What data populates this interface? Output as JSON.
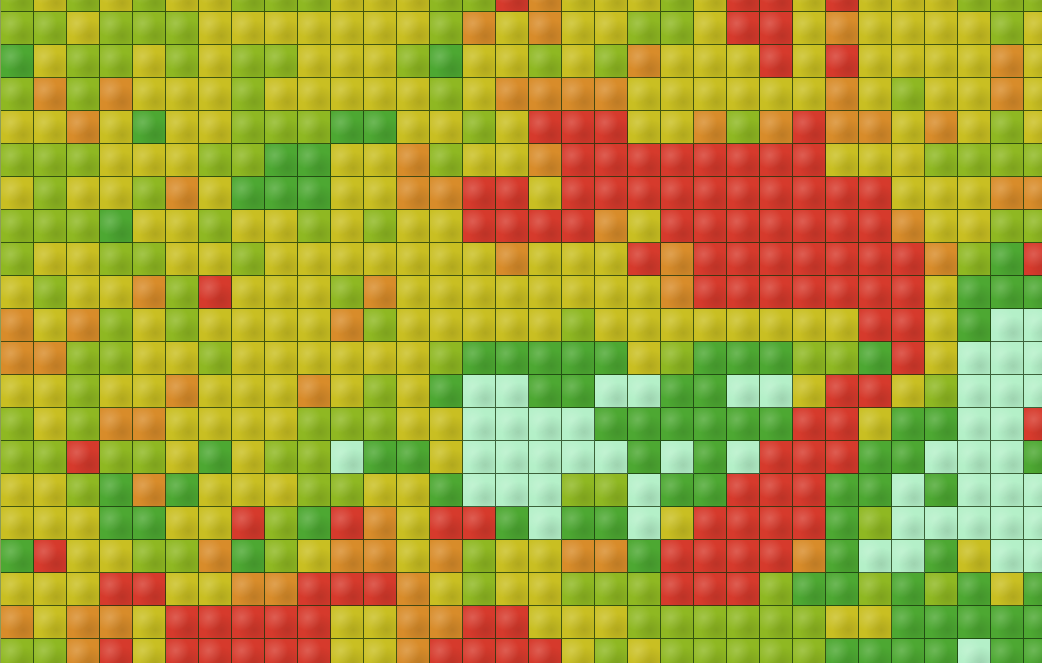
{
  "map": {
    "overlay": "heatmap-grid",
    "legend_colors": {
      "0": "#b4f0c8",
      "1": "#4da832",
      "2": "#8fb822",
      "3": "#c9bf22",
      "4": "#d88c2a",
      "5": "#d63a2c"
    },
    "cell_levels": [
      "23232332223332254333235535333222",
      "22322233333332434332235534333323",
      "13223232233321332324333535333343",
      "24243332333332344443333334323343",
      "33431332221133235553342454434323",
      "22233322113342334555555553332222",
      "32332431113344553555555555533344",
      "22213323323233555543555555543322",
      "23322332333333343335455555554215",
      "32334253332433333333455555553111",
      "43423233334233333233333333553100",
      "44223323333332111113211122153000",
      "33233433343231001100110035532000",
      "23244333322233000011111155311005",
      "22522313220113000001010555110001",
      "33214133322331000220115551101000",
      "33311335215435510110355551200000",
      "15332241234434233441555541001300",
      "33355334455543233222555211212131",
      "43443555553344553332222223311111",
      "22453555553345555323222221111011"
    ]
  }
}
